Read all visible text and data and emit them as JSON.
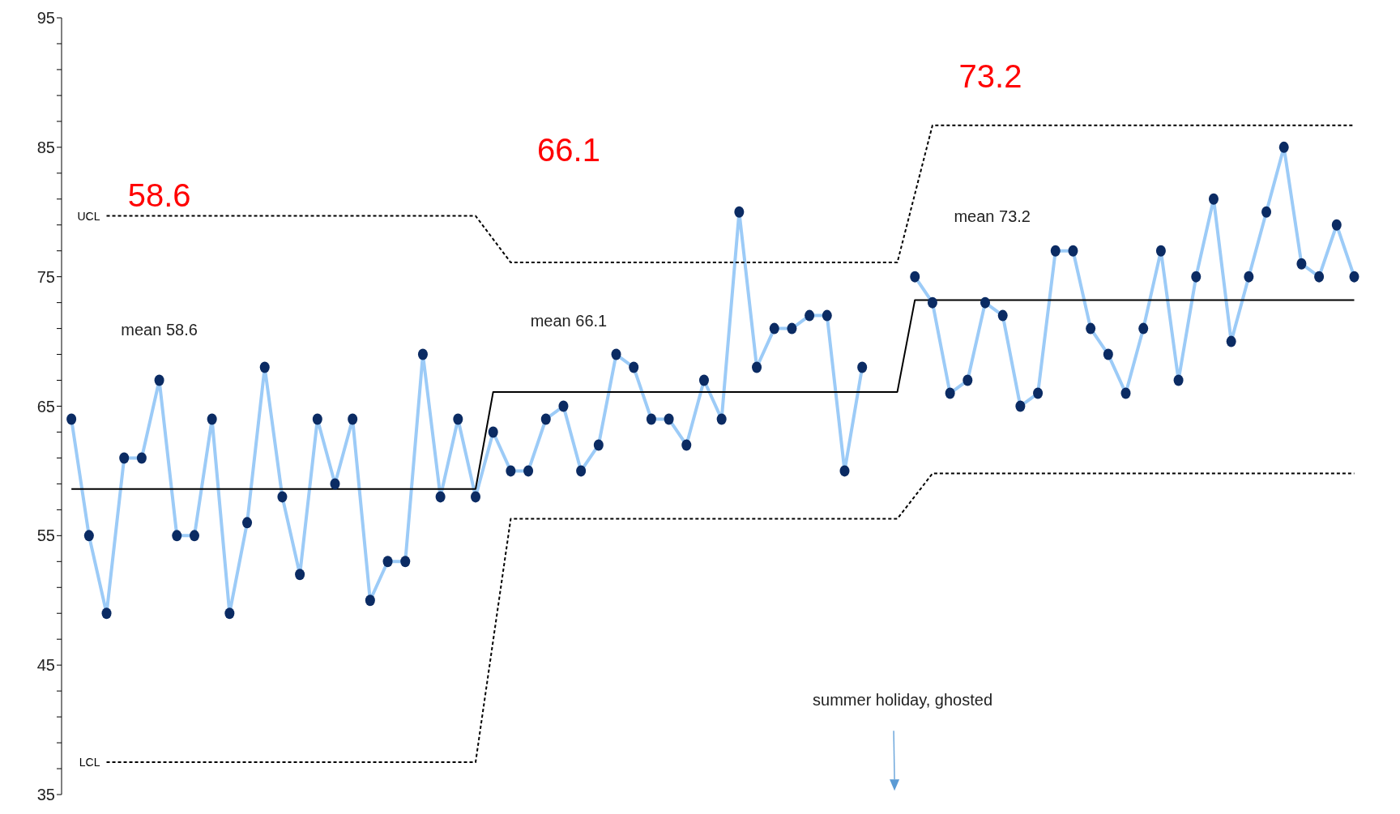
{
  "chart_data": {
    "type": "line",
    "marker": "circle",
    "categories": [
      null,
      null,
      null,
      null,
      null,
      null,
      null,
      null,
      null,
      null,
      null,
      null,
      null,
      null,
      null,
      null,
      null,
      null,
      null,
      null,
      null,
      null,
      null,
      null,
      null,
      null,
      null,
      null,
      null,
      null,
      null,
      null,
      null,
      null,
      null,
      null,
      null,
      null,
      null,
      null,
      null,
      null,
      null,
      null,
      null,
      null,
      null,
      null,
      null,
      null,
      null,
      null,
      null,
      null,
      null,
      null,
      null,
      null,
      null,
      null,
      null,
      null,
      null,
      null,
      null,
      null,
      null,
      null,
      null,
      null,
      null,
      null,
      null,
      null
    ],
    "series": [
      {
        "color": "#9ccbf7",
        "values": [
          64,
          55,
          49,
          61,
          61,
          67,
          55,
          55,
          64,
          49,
          56,
          68,
          58,
          52,
          64,
          59,
          64,
          50,
          53,
          53,
          69,
          58,
          64,
          58,
          63,
          60,
          60,
          64,
          65,
          60,
          62,
          69,
          68,
          64,
          64,
          62,
          67,
          64,
          80,
          68,
          71,
          71,
          72,
          72,
          60,
          68,
          null,
          null,
          75,
          73,
          66,
          67,
          73,
          72,
          65,
          66,
          77,
          77,
          71,
          69,
          66,
          71,
          77,
          67,
          75,
          81,
          70,
          75,
          80,
          85,
          76,
          75,
          79,
          75
        ]
      },
      {
        "type": "line",
        "marker": "none",
        "line_style": "solid",
        "color": "#000000",
        "values": [
          58.6,
          58.6,
          58.6,
          58.6,
          58.6,
          58.6,
          58.6,
          58.6,
          58.6,
          58.6,
          58.6,
          58.6,
          58.6,
          58.6,
          58.6,
          58.6,
          58.6,
          58.6,
          58.6,
          58.6,
          58.6,
          58.6,
          58.6,
          58.6,
          66.1,
          66.1,
          66.1,
          66.1,
          66.1,
          66.1,
          66.1,
          66.1,
          66.1,
          66.1,
          66.1,
          66.1,
          66.1,
          66.1,
          66.1,
          66.1,
          66.1,
          66.1,
          66.1,
          66.1,
          66.1,
          66.1,
          66.1,
          66.1,
          73.2,
          73.2,
          73.2,
          73.2,
          73.2,
          73.2,
          73.2,
          73.2,
          73.2,
          73.2,
          73.2,
          73.2,
          73.2,
          73.2,
          73.2,
          73.2,
          73.2,
          73.2,
          73.2,
          73.2,
          73.2,
          73.2,
          73.2,
          73.2,
          73.2,
          73.2
        ]
      },
      {
        "type": "line",
        "marker": "none",
        "line_style": "dashed",
        "name": "UCL",
        "color": "#000000",
        "values": [
          null,
          null,
          79.7,
          79.7,
          79.7,
          79.7,
          79.7,
          79.7,
          79.7,
          79.7,
          79.7,
          79.7,
          79.7,
          79.7,
          79.7,
          79.7,
          79.7,
          79.7,
          79.7,
          79.7,
          79.7,
          79.7,
          79.7,
          79.7,
          null,
          76.1,
          76.1,
          76.1,
          76.1,
          76.1,
          76.1,
          76.1,
          76.1,
          76.1,
          76.1,
          76.1,
          76.1,
          76.1,
          76.1,
          76.1,
          76.1,
          76.1,
          76.1,
          76.1,
          76.1,
          76.1,
          76.1,
          76.1,
          null,
          86.7,
          86.7,
          86.7,
          86.7,
          86.7,
          86.7,
          86.7,
          86.7,
          86.7,
          86.7,
          86.7,
          86.7,
          86.7,
          86.7,
          86.7,
          86.7,
          86.7,
          86.7,
          86.7,
          86.7,
          86.7,
          86.7,
          86.7,
          86.7,
          86.7
        ]
      },
      {
        "type": "line",
        "marker": "none",
        "line_style": "dashed",
        "name": "LCL",
        "color": "#000000",
        "values": [
          null,
          null,
          37.5,
          37.5,
          37.5,
          37.5,
          37.5,
          37.5,
          37.5,
          37.5,
          37.5,
          37.5,
          37.5,
          37.5,
          37.5,
          37.5,
          37.5,
          37.5,
          37.5,
          37.5,
          37.5,
          37.5,
          37.5,
          37.5,
          null,
          56.3,
          56.3,
          56.3,
          56.3,
          56.3,
          56.3,
          56.3,
          56.3,
          56.3,
          56.3,
          56.3,
          56.3,
          56.3,
          56.3,
          56.3,
          56.3,
          56.3,
          56.3,
          56.3,
          56.3,
          56.3,
          56.3,
          56.3,
          null,
          59.8,
          59.8,
          59.8,
          59.8,
          59.8,
          59.8,
          59.8,
          59.8,
          59.8,
          59.8,
          59.8,
          59.8,
          59.8,
          59.8,
          59.8,
          59.8,
          59.8,
          59.8,
          59.8,
          59.8,
          59.8,
          59.8,
          59.8,
          59.8,
          59.8
        ]
      }
    ],
    "ylim": [
      35,
      95
    ],
    "yticks": [
      35,
      {
        "value": 37,
        "label": null
      },
      {
        "value": 39,
        "label": null
      },
      {
        "value": 41,
        "label": null
      },
      {
        "value": 43,
        "label": null
      },
      45,
      {
        "value": 47,
        "label": null
      },
      {
        "value": 49,
        "label": null
      },
      {
        "value": 51,
        "label": null
      },
      {
        "value": 53,
        "label": null
      },
      55,
      {
        "value": 57,
        "label": null
      },
      {
        "value": 59,
        "label": null
      },
      {
        "value": 61,
        "label": null
      },
      {
        "value": 63,
        "label": null
      },
      65,
      {
        "value": 67,
        "label": null
      },
      {
        "value": 69,
        "label": null
      },
      {
        "value": 71,
        "label": null
      },
      {
        "value": 73,
        "label": null
      },
      75,
      {
        "value": 77,
        "label": null
      },
      {
        "value": 79,
        "label": null
      },
      {
        "value": 81,
        "label": null
      },
      {
        "value": 83,
        "label": null
      },
      85,
      {
        "value": 87,
        "label": null
      },
      {
        "value": 89,
        "label": null
      },
      {
        "value": 91,
        "label": null
      },
      {
        "value": 93,
        "label": null
      },
      95
    ],
    "tick_labels": "y",
    "annotations": [
      "58.6",
      "66.1",
      "73.2",
      "mean 58.6",
      "mean 66.1",
      "mean 73.2",
      "summer holiday, ghosted"
    ]
  }
}
